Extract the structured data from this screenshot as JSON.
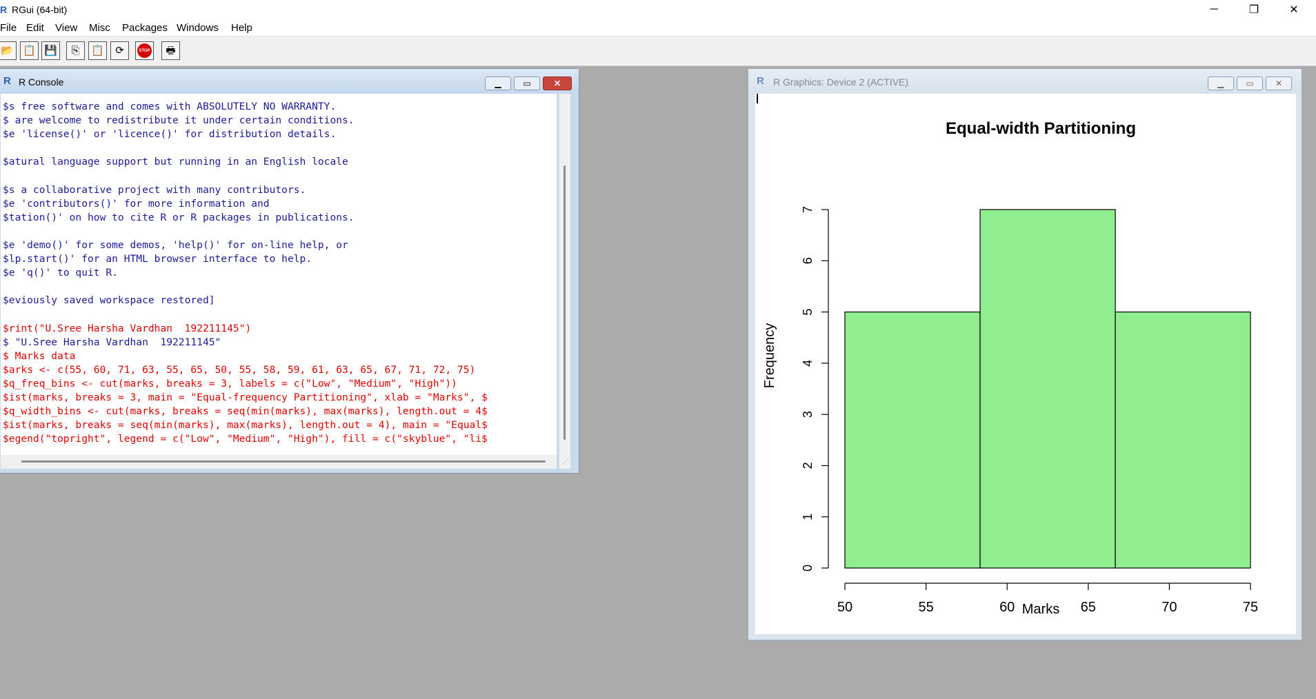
{
  "app": {
    "icon_letter": "R",
    "title": "RGui (64-bit)",
    "controls": {
      "minimize": "─",
      "restore": "❐",
      "close": "✕"
    }
  },
  "menu": [
    "File",
    "Edit",
    "View",
    "Misc",
    "Packages",
    "Windows",
    "Help"
  ],
  "toolbar": [
    {
      "name": "open-script-icon",
      "glyph": "📂"
    },
    {
      "name": "load-workspace-icon",
      "glyph": "📋"
    },
    {
      "name": "save-workspace-icon",
      "glyph": "💾"
    },
    {
      "name": "copy-icon",
      "glyph": "⎘"
    },
    {
      "name": "paste-icon",
      "glyph": "📋"
    },
    {
      "name": "copy-paste-icon",
      "glyph": "⟳"
    },
    {
      "name": "stop-icon",
      "glyph": "STOP"
    },
    {
      "name": "print-icon",
      "glyph": "🖶"
    }
  ],
  "console": {
    "title": "R Console",
    "icon_letter": "R",
    "lines": [
      {
        "text": "$s free software and comes with ABSOLUTELY NO WARRANTY.",
        "color": "blue"
      },
      {
        "text": "$ are welcome to redistribute it under certain conditions.",
        "color": "blue"
      },
      {
        "text": "$e 'license()' or 'licence()' for distribution details.",
        "color": "blue"
      },
      {
        "text": "",
        "color": "blue"
      },
      {
        "text": "$atural language support but running in an English locale",
        "color": "blue"
      },
      {
        "text": "",
        "color": "blue"
      },
      {
        "text": "$s a collaborative project with many contributors.",
        "color": "blue"
      },
      {
        "text": "$e 'contributors()' for more information and",
        "color": "blue"
      },
      {
        "text": "$tation()' on how to cite R or R packages in publications.",
        "color": "blue"
      },
      {
        "text": "",
        "color": "blue"
      },
      {
        "text": "$e 'demo()' for some demos, 'help()' for on-line help, or",
        "color": "blue"
      },
      {
        "text": "$lp.start()' for an HTML browser interface to help.",
        "color": "blue"
      },
      {
        "text": "$e 'q()' to quit R.",
        "color": "blue"
      },
      {
        "text": "",
        "color": "blue"
      },
      {
        "text": "$eviously saved workspace restored]",
        "color": "blue"
      },
      {
        "text": "",
        "color": "blue"
      },
      {
        "text": "$rint(\"U.Sree Harsha Vardhan  192211145\")",
        "color": "red"
      },
      {
        "text": "$ \"U.Sree Harsha Vardhan  192211145\"",
        "color": "blue"
      },
      {
        "text": "$ Marks data",
        "color": "red"
      },
      {
        "text": "$arks <- c(55, 60, 71, 63, 55, 65, 50, 55, 58, 59, 61, 63, 65, 67, 71, 72, 75)",
        "color": "red"
      },
      {
        "text": "$q_freq_bins <- cut(marks, breaks = 3, labels = c(\"Low\", \"Medium\", \"High\"))",
        "color": "red"
      },
      {
        "text": "$ist(marks, breaks = 3, main = \"Equal-frequency Partitioning\", xlab = \"Marks\", $",
        "color": "red"
      },
      {
        "text": "$q_width_bins <- cut(marks, breaks = seq(min(marks), max(marks), length.out = 4$",
        "color": "red"
      },
      {
        "text": "$ist(marks, breaks = seq(min(marks), max(marks), length.out = 4), main = \"Equal$",
        "color": "red"
      },
      {
        "text": "$egend(\"topright\", legend = c(\"Low\", \"Medium\", \"High\"), fill = c(\"skyblue\", \"li$",
        "color": "red"
      }
    ]
  },
  "graphics": {
    "title": "R Graphics: Device 2 (ACTIVE)",
    "icon_letter": "R"
  },
  "chart_data": {
    "type": "bar",
    "title": "Equal-width Partitioning",
    "xlabel": "Marks",
    "ylabel": "Frequency",
    "bins": [
      {
        "from": 50,
        "to": 58.333,
        "count": 5
      },
      {
        "from": 58.333,
        "to": 66.667,
        "count": 7
      },
      {
        "from": 66.667,
        "to": 75,
        "count": 5
      }
    ],
    "xticks": [
      50,
      55,
      60,
      65,
      70,
      75
    ],
    "yticks": [
      0,
      1,
      2,
      3,
      4,
      5,
      6,
      7
    ],
    "xlim": [
      50,
      75
    ],
    "ylim": [
      0,
      7
    ],
    "bar_color": "#90ee90",
    "grid": false
  },
  "colors": {
    "console_blue": "#1b1b9a",
    "console_red": "#e00000",
    "mdi_background": "#ababab",
    "window_frame": "#c9daea"
  }
}
